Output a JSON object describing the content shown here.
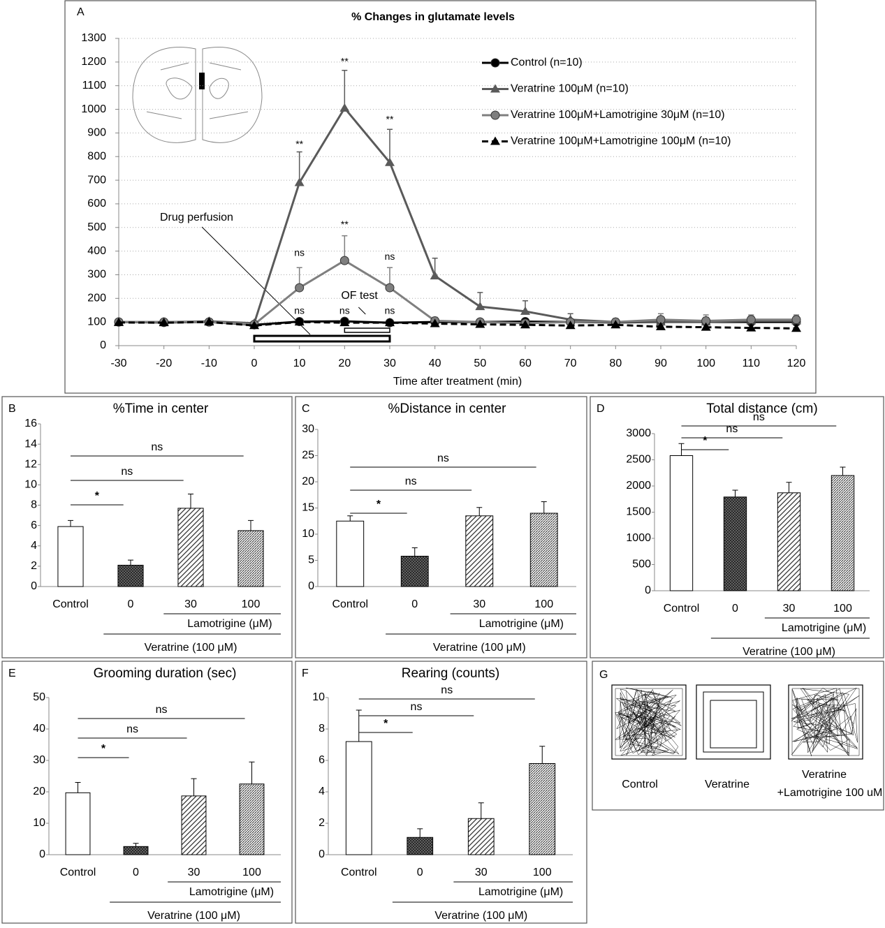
{
  "chart_data": [
    {
      "type": "line",
      "panel": "A",
      "title": "% Changes in glutamate levels",
      "xlabel": "Time after treatment (min)",
      "x": [
        -30,
        -20,
        -10,
        0,
        10,
        20,
        30,
        40,
        50,
        60,
        70,
        80,
        90,
        100,
        110,
        120
      ],
      "xlim": [
        -30,
        120
      ],
      "xticks": [
        -30,
        -20,
        -10,
        0,
        10,
        20,
        30,
        40,
        50,
        60,
        70,
        80,
        90,
        100,
        110,
        120
      ],
      "ylim": [
        0,
        1300
      ],
      "yticks": [
        0,
        100,
        200,
        300,
        400,
        500,
        600,
        700,
        800,
        900,
        1000,
        1100,
        1200,
        1300
      ],
      "grid": true,
      "legend": "upper right",
      "series": [
        {
          "name": "Control (n=10)",
          "color": "#000000",
          "marker": "circle",
          "dash": false,
          "values": [
            100,
            98,
            100,
            88,
            102,
            103,
            97,
            100,
            100,
            102,
            100,
            98,
            100,
            100,
            100,
            100
          ]
        },
        {
          "name": "Veratrine 100μM  (n=10)",
          "color": "#5a5a5a",
          "marker": "triangle",
          "dash": false,
          "values": [
            100,
            100,
            103,
            95,
            690,
            1005,
            775,
            295,
            165,
            145,
            110,
            100,
            100,
            100,
            105,
            105
          ],
          "errors": [
            null,
            null,
            null,
            null,
            130,
            160,
            140,
            75,
            60,
            45,
            25,
            15,
            20,
            20,
            20,
            20
          ]
        },
        {
          "name": "Veratrine 100μM+Lamotrigine 30μM  (n=10)",
          "color": "#7f7f7f",
          "marker": "circle",
          "dash": false,
          "values": [
            100,
            100,
            100,
            90,
            245,
            360,
            245,
            105,
            100,
            95,
            100,
            100,
            110,
            105,
            110,
            110
          ],
          "errors": [
            null,
            null,
            null,
            null,
            85,
            105,
            85,
            15,
            null,
            null,
            null,
            null,
            25,
            25,
            20,
            20
          ]
        },
        {
          "name": "Veratrine 100μM+Lamotrigine 100μM  (n=10)",
          "color": "#000000",
          "marker": "triangle",
          "dash": true,
          "values": [
            98,
            97,
            100,
            85,
            100,
            97,
            97,
            93,
            90,
            88,
            85,
            88,
            80,
            78,
            75,
            73
          ]
        }
      ],
      "spans": [
        {
          "label": "Drug perfusion",
          "start": 0,
          "end": 30
        },
        {
          "label": "OF test",
          "start": 20,
          "end": 30
        }
      ],
      "annotations": [
        {
          "text": "**",
          "x": 10,
          "y": 850
        },
        {
          "text": "**",
          "x": 20,
          "y": 1200
        },
        {
          "text": "**",
          "x": 30,
          "y": 955
        },
        {
          "text": "**",
          "x": 20,
          "y": 510
        },
        {
          "text": "ns",
          "x": 10,
          "y": 390
        },
        {
          "text": "ns",
          "x": 30,
          "y": 375
        },
        {
          "text": "ns",
          "x": 10,
          "y": 145
        },
        {
          "text": "ns",
          "x": 20,
          "y": 145
        },
        {
          "text": "ns",
          "x": 30,
          "y": 145
        }
      ]
    },
    {
      "type": "bar",
      "panel": "B",
      "title": "%Time in center",
      "categories": [
        "Control",
        "0",
        "30",
        "100"
      ],
      "values": [
        5.9,
        2.1,
        7.7,
        5.5
      ],
      "errors": [
        0.6,
        0.5,
        1.4,
        1.0
      ],
      "ylim": [
        0,
        16
      ],
      "yticks": [
        0,
        2,
        4,
        6,
        8,
        10,
        12,
        14,
        16
      ],
      "patterns": [
        "white",
        "crosshatch",
        "hatch",
        "dense-hatch"
      ],
      "groups": [
        {
          "label": "Lamotrigine (μM)",
          "between": [
            2,
            3
          ]
        },
        {
          "label": "Veratrine (100 μM)",
          "between": [
            1,
            3
          ]
        }
      ],
      "comparisons": [
        {
          "label": "ns",
          "between": [
            0,
            3
          ]
        },
        {
          "label": "ns",
          "between": [
            0,
            2
          ]
        },
        {
          "label": "*",
          "between": [
            0,
            1
          ]
        }
      ]
    },
    {
      "type": "bar",
      "panel": "C",
      "title": "%Distance in center",
      "categories": [
        "Control",
        "0",
        "30",
        "100"
      ],
      "values": [
        12.5,
        5.8,
        13.5,
        14.0
      ],
      "errors": [
        1.0,
        1.6,
        1.6,
        2.2
      ],
      "ylim": [
        0,
        30
      ],
      "yticks": [
        0,
        5,
        10,
        15,
        20,
        25,
        30
      ],
      "patterns": [
        "white",
        "crosshatch",
        "hatch",
        "dense-hatch"
      ],
      "groups": [
        {
          "label": "Lamotrigine (μM)",
          "between": [
            2,
            3
          ]
        },
        {
          "label": "Veratrine (100 μM)",
          "between": [
            1,
            3
          ]
        }
      ],
      "comparisons": [
        {
          "label": "ns",
          "between": [
            0,
            3
          ]
        },
        {
          "label": "ns",
          "between": [
            0,
            2
          ]
        },
        {
          "label": "*",
          "between": [
            0,
            1
          ]
        }
      ]
    },
    {
      "type": "bar",
      "panel": "D",
      "title": "Total distance (cm)",
      "categories": [
        "Control",
        "0",
        "30",
        "100"
      ],
      "values": [
        2580,
        1790,
        1870,
        2200
      ],
      "errors": [
        230,
        130,
        200,
        160
      ],
      "ylim": [
        0,
        3000
      ],
      "yticks": [
        0,
        500,
        1000,
        1500,
        2000,
        2500,
        3000
      ],
      "patterns": [
        "white",
        "crosshatch",
        "hatch",
        "dense-hatch"
      ],
      "groups": [
        {
          "label": "Lamotrigine (μM)",
          "between": [
            2,
            3
          ]
        },
        {
          "label": "Veratrine (100 μM)",
          "between": [
            1,
            3
          ]
        }
      ],
      "comparisons": [
        {
          "label": "ns",
          "between": [
            0,
            3
          ]
        },
        {
          "label": "ns",
          "between": [
            0,
            2
          ]
        },
        {
          "label": "*",
          "between": [
            0,
            1
          ]
        }
      ]
    },
    {
      "type": "bar",
      "panel": "E",
      "title": "Grooming duration (sec)",
      "categories": [
        "Control",
        "0",
        "30",
        "100"
      ],
      "values": [
        19.7,
        2.6,
        18.7,
        22.5
      ],
      "errors": [
        3.3,
        1.0,
        5.5,
        7.0
      ],
      "ylim": [
        0,
        50
      ],
      "yticks": [
        0,
        10,
        20,
        30,
        40,
        50
      ],
      "patterns": [
        "white",
        "crosshatch",
        "hatch",
        "dense-hatch"
      ],
      "groups": [
        {
          "label": "Lamotrigine (μM)",
          "between": [
            2,
            3
          ]
        },
        {
          "label": "Veratrine (100 μM)",
          "between": [
            1,
            3
          ]
        }
      ],
      "comparisons": [
        {
          "label": "ns",
          "between": [
            0,
            3
          ]
        },
        {
          "label": "ns",
          "between": [
            0,
            2
          ]
        },
        {
          "label": "*",
          "between": [
            0,
            1
          ]
        }
      ]
    },
    {
      "type": "bar",
      "panel": "F",
      "title": "Rearing (counts)",
      "categories": [
        "Control",
        "0",
        "30",
        "100"
      ],
      "values": [
        7.2,
        1.1,
        2.3,
        5.8
      ],
      "errors": [
        2.0,
        0.55,
        1.0,
        1.1
      ],
      "ylim": [
        0,
        10
      ],
      "yticks": [
        0,
        2,
        4,
        6,
        8,
        10
      ],
      "patterns": [
        "white",
        "crosshatch",
        "hatch",
        "dense-hatch"
      ],
      "groups": [
        {
          "label": "Lamotrigine (μM)",
          "between": [
            2,
            3
          ]
        },
        {
          "label": "Veratrine (100 μM)",
          "between": [
            1,
            3
          ]
        }
      ],
      "comparisons": [
        {
          "label": "ns",
          "between": [
            0,
            3
          ]
        },
        {
          "label": "ns",
          "between": [
            0,
            2
          ]
        },
        {
          "label": "*",
          "between": [
            0,
            1
          ]
        }
      ]
    }
  ],
  "panel_g": {
    "panel": "G",
    "labels": [
      [
        "Control"
      ],
      [
        "Veratrine"
      ],
      [
        "Veratrine",
        "+Lamotrigine 100 uM"
      ]
    ]
  }
}
